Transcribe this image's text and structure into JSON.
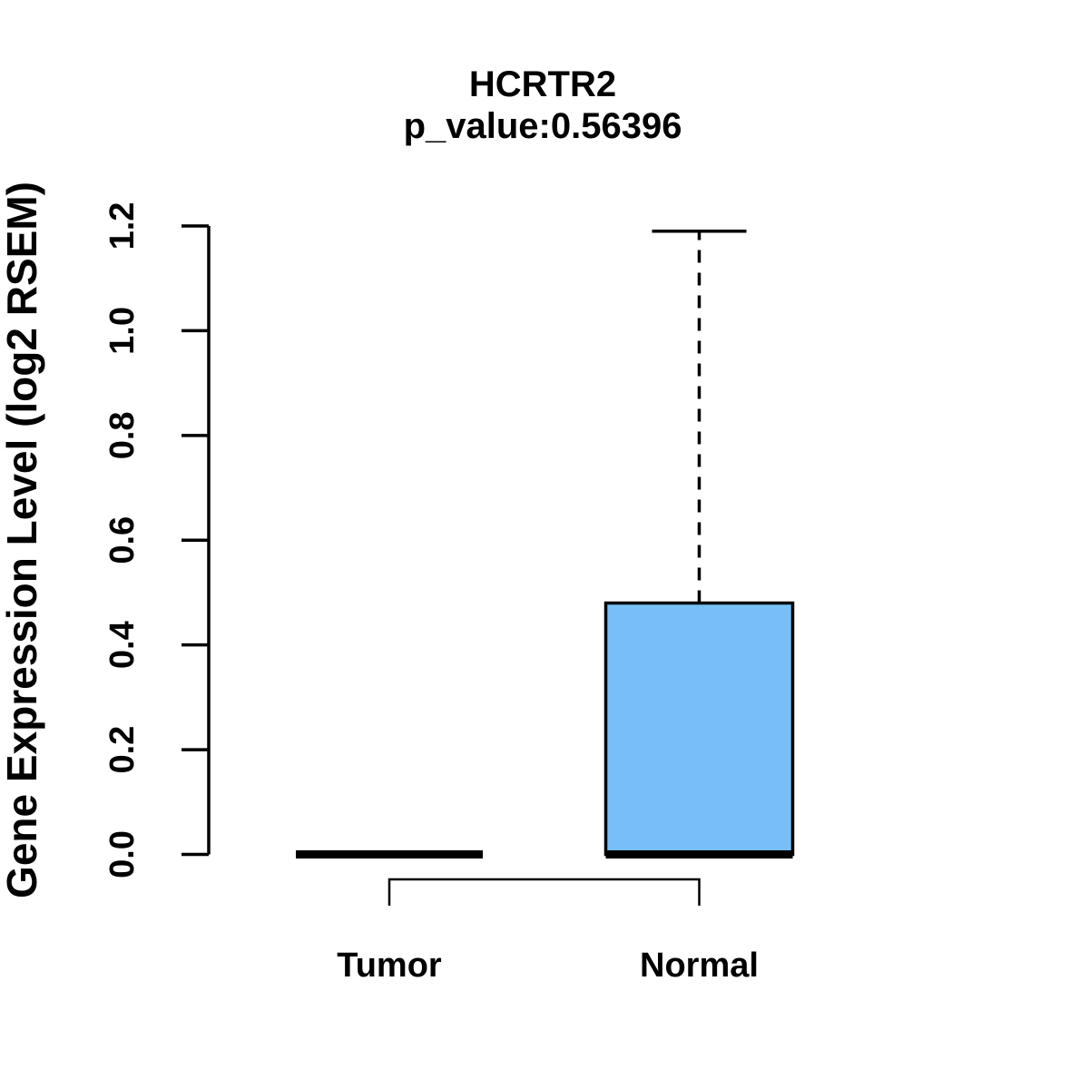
{
  "title": {
    "line1": "HCRTR2",
    "line2": "p_value:0.56396"
  },
  "chart_data": {
    "type": "boxplot",
    "title": "HCRTR2",
    "subtitle": "p_value:0.56396",
    "gene": "HCRTR2",
    "p_value": 0.56396,
    "ylabel": "Gene Expression Level (log2 RSEM)",
    "xlabel": "",
    "categories": [
      "Tumor",
      "Normal"
    ],
    "series": [
      {
        "name": "Tumor",
        "lower_whisker": 0,
        "q1": 0,
        "median": 0,
        "q3": 0,
        "upper_whisker": 0
      },
      {
        "name": "Normal",
        "lower_whisker": 0,
        "q1": 0,
        "median": 0,
        "q3": 0.48,
        "upper_whisker": 1.19
      }
    ],
    "ylim": [
      0.0,
      1.2
    ],
    "yticks": [
      0.0,
      0.2,
      0.4,
      0.6,
      0.8,
      1.0,
      1.2
    ],
    "grid": false,
    "legend": false,
    "box_fill_color": "#76BFF7",
    "line_color": "#000000",
    "comparison_bracket": [
      "Tumor",
      "Normal"
    ]
  }
}
